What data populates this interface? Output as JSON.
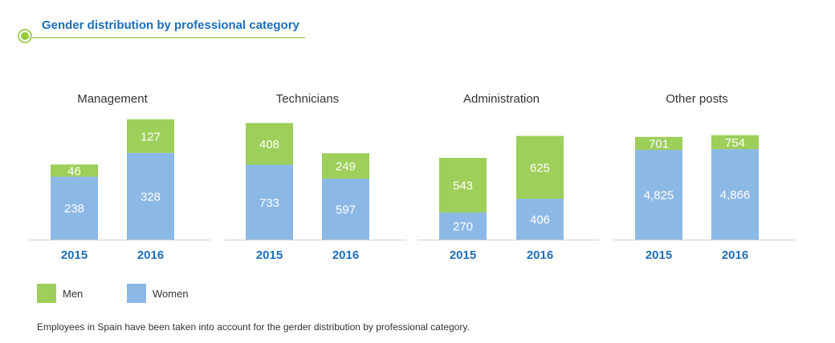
{
  "page": {
    "title": "Gender distribution by professional category",
    "footnote": "Employees in Spain have been taken into account for the gerder distribution by professional category."
  },
  "legend": {
    "men_label": "Men",
    "women_label": "Women"
  },
  "colors": {
    "men": "#9dcf5a",
    "women": "#8cb8e6",
    "year_label": "#1d6fb8",
    "title": "#1d6fb8",
    "axis": "#d0d0d0"
  },
  "chart_data": [
    {
      "type": "bar",
      "stacked": true,
      "title": "Management",
      "categories": [
        "2015",
        "2016"
      ],
      "series": [
        {
          "name": "Women",
          "values": [
            238,
            328
          ]
        },
        {
          "name": "Men",
          "values": [
            46,
            127
          ]
        }
      ]
    },
    {
      "type": "bar",
      "stacked": true,
      "title": "Technicians",
      "categories": [
        "2015",
        "2016"
      ],
      "series": [
        {
          "name": "Women",
          "values": [
            733,
            597
          ]
        },
        {
          "name": "Men",
          "values": [
            408,
            249
          ]
        }
      ]
    },
    {
      "type": "bar",
      "stacked": true,
      "title": "Administration",
      "categories": [
        "2015",
        "2016"
      ],
      "series": [
        {
          "name": "Women",
          "values": [
            270,
            406
          ]
        },
        {
          "name": "Men",
          "values": [
            543,
            625
          ]
        }
      ]
    },
    {
      "type": "bar",
      "stacked": true,
      "title": "Other posts",
      "categories": [
        "2015",
        "2016"
      ],
      "series": [
        {
          "name": "Women",
          "values": [
            4825,
            4866
          ],
          "labels": [
            "4,825",
            "4,866"
          ]
        },
        {
          "name": "Men",
          "values": [
            701,
            754
          ]
        }
      ]
    }
  ]
}
